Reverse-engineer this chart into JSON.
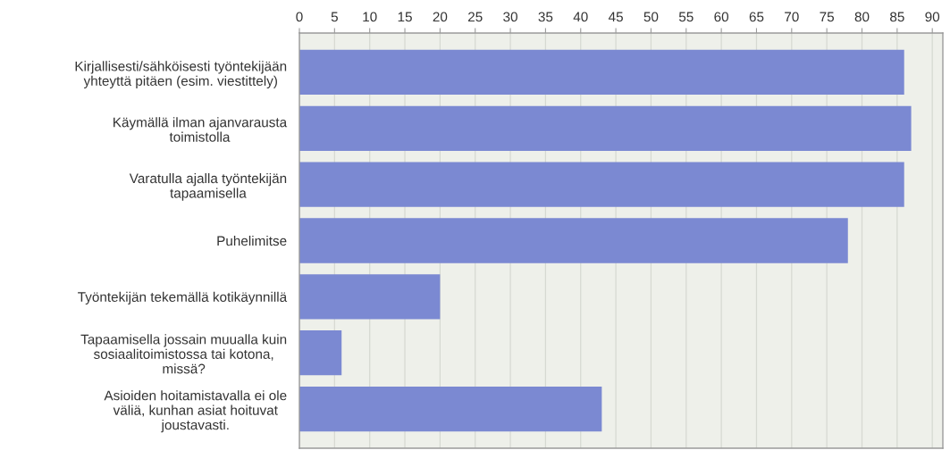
{
  "chart_data": {
    "type": "bar",
    "orientation": "horizontal",
    "categories": [
      "Kirjallisesti/sähköisesti työntekijään\nyhteyttä pitäen (esim. viestittely)",
      "Käymällä ilman ajanvarausta\ntoimistolla",
      "Varatulla ajalla työntekijän\ntapaamisella",
      "Puhelimitse",
      "Työntekijän tekemällä kotikäynnillä",
      "Tapaamisella jossain muualla kuin\nsosiaalitoimistossa tai kotona,\nmissä?",
      "Asioiden hoitamistavalla ei ole\nväliä, kunhan asiat hoituvat\njoustavasti."
    ],
    "values": [
      86,
      87,
      86,
      78,
      20,
      6,
      43
    ],
    "color": "#7b89d2",
    "xlim": [
      0,
      91.5
    ],
    "xticks": [
      0,
      5,
      10,
      15,
      20,
      25,
      30,
      35,
      40,
      45,
      50,
      55,
      60,
      65,
      70,
      75,
      80,
      85,
      90
    ],
    "grid": "x"
  }
}
